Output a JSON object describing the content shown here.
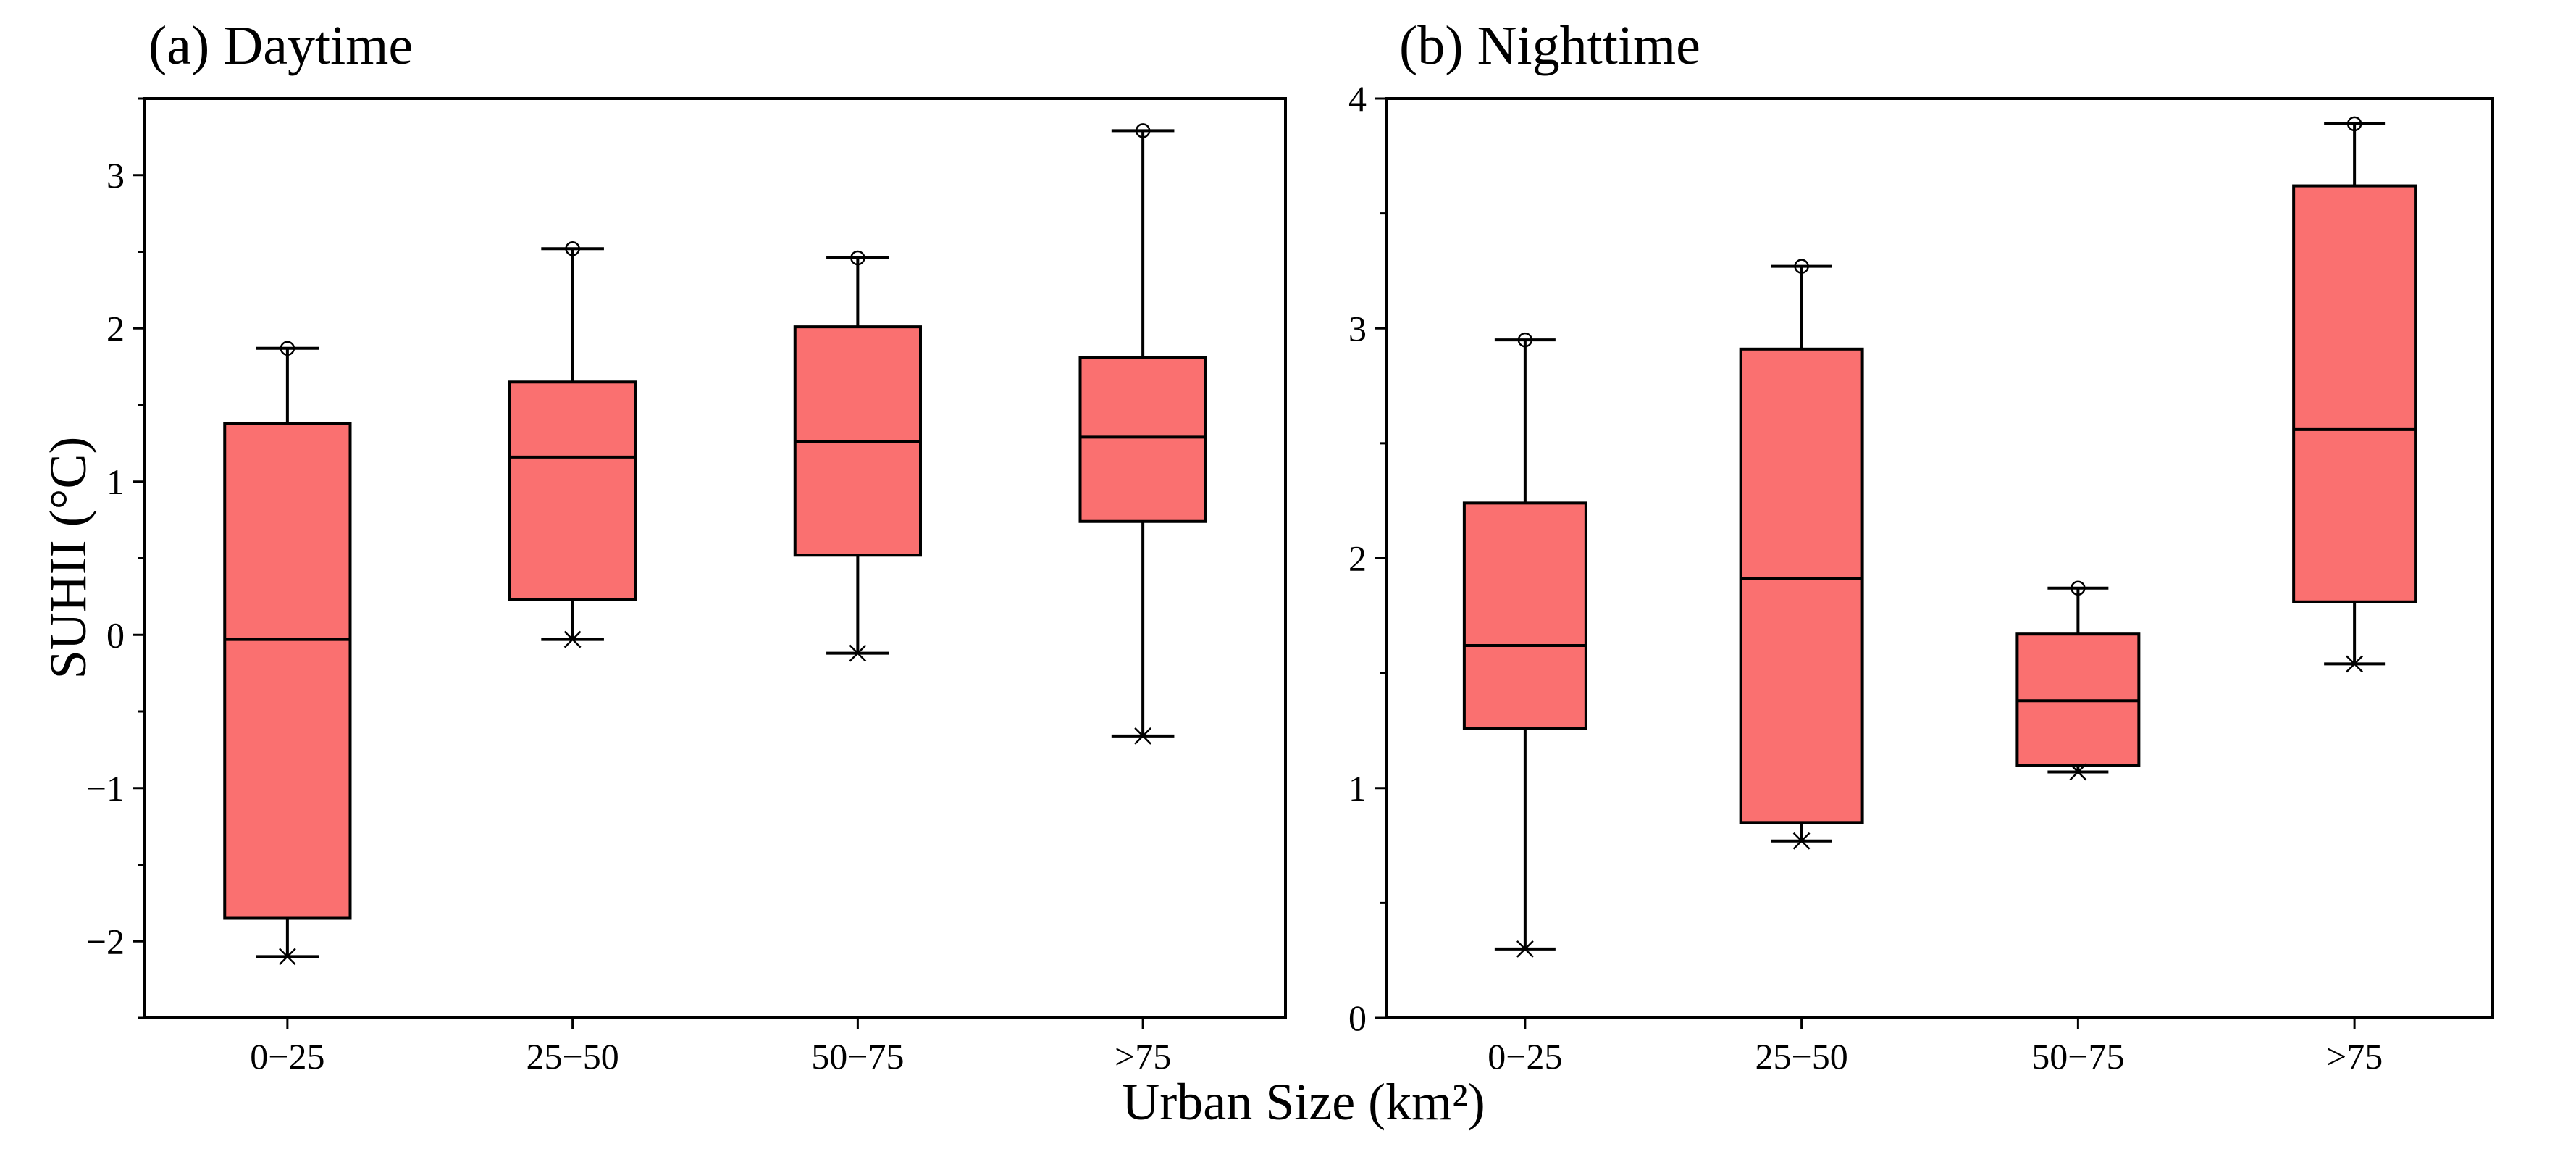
{
  "shared": {
    "xlabel": "Urban Size (km²)",
    "ylabel": "SUHII (°C)",
    "box_color": "#FA7070",
    "line_color": "#000000"
  },
  "chart_data": [
    {
      "type": "box",
      "title": "(a) Daytime",
      "categories": [
        "0−25",
        "25−50",
        "50−75",
        ">75"
      ],
      "ylim": [
        -2.5,
        3.5
      ],
      "yticks_major": [
        -2,
        -1,
        0,
        1,
        2,
        3
      ],
      "ytick_labels": [
        "−2",
        "−1",
        "0",
        "1",
        "2",
        "3"
      ],
      "minor_ticks": true,
      "boxes": [
        {
          "min": -2.1,
          "q1": -1.85,
          "median": -0.03,
          "q3": 1.38,
          "max": 1.87
        },
        {
          "min": -0.03,
          "q1": 0.23,
          "median": 1.16,
          "q3": 1.65,
          "max": 2.52
        },
        {
          "min": -0.12,
          "q1": 0.52,
          "median": 1.26,
          "q3": 2.01,
          "max": 2.46
        },
        {
          "min": -0.66,
          "q1": 0.74,
          "median": 1.29,
          "q3": 1.81,
          "max": 3.29
        }
      ]
    },
    {
      "type": "box",
      "title": "(b) Nighttime",
      "categories": [
        "0−25",
        "25−50",
        "50−75",
        ">75"
      ],
      "ylim": [
        0,
        4
      ],
      "yticks_major": [
        0,
        1,
        2,
        3,
        4
      ],
      "ytick_labels": [
        "0",
        "1",
        "2",
        "3",
        "4"
      ],
      "minor_ticks": true,
      "boxes": [
        {
          "min": 0.3,
          "q1": 1.26,
          "median": 1.62,
          "q3": 2.24,
          "max": 2.95
        },
        {
          "min": 0.77,
          "q1": 0.85,
          "median": 1.91,
          "q3": 2.91,
          "max": 3.27
        },
        {
          "min": 1.07,
          "q1": 1.1,
          "median": 1.38,
          "q3": 1.67,
          "max": 1.87
        },
        {
          "min": 1.54,
          "q1": 1.81,
          "median": 2.56,
          "q3": 3.62,
          "max": 3.89
        }
      ]
    }
  ]
}
